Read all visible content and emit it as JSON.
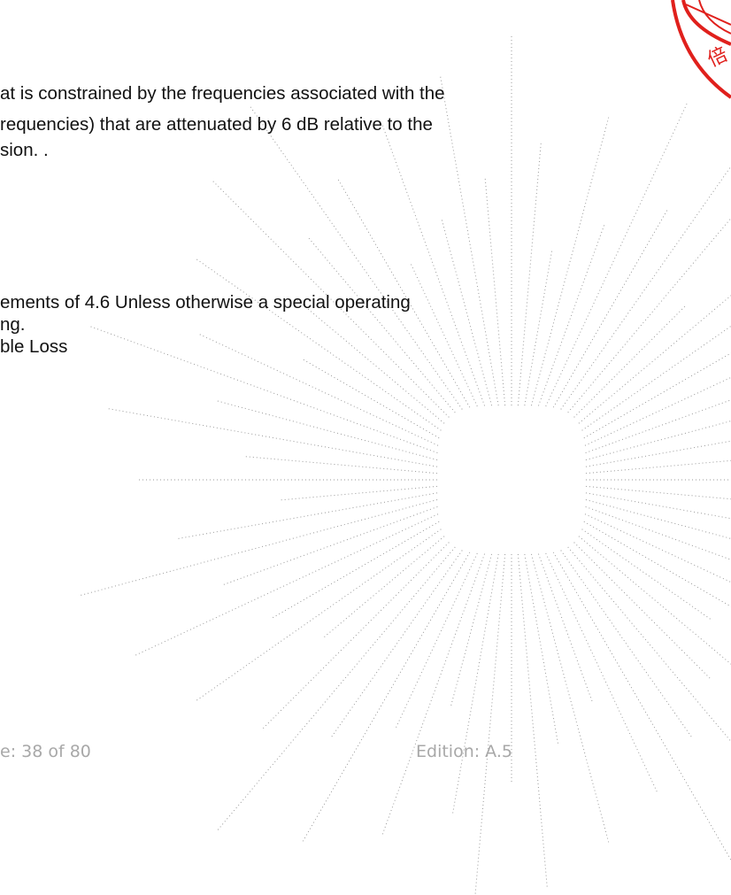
{
  "body_lines": [
    "at is constrained by the frequencies associated with the",
    "requencies) that are attenuated by 6 dB relative to the",
    "sion.    .",
    "ements of 4.6 Unless otherwise a special operating",
    "ng.",
    "ble Loss"
  ],
  "footer": {
    "page": "e: 38 of 80",
    "edition": "Edition:  A.5"
  },
  "stamp": {
    "text": "倍"
  }
}
